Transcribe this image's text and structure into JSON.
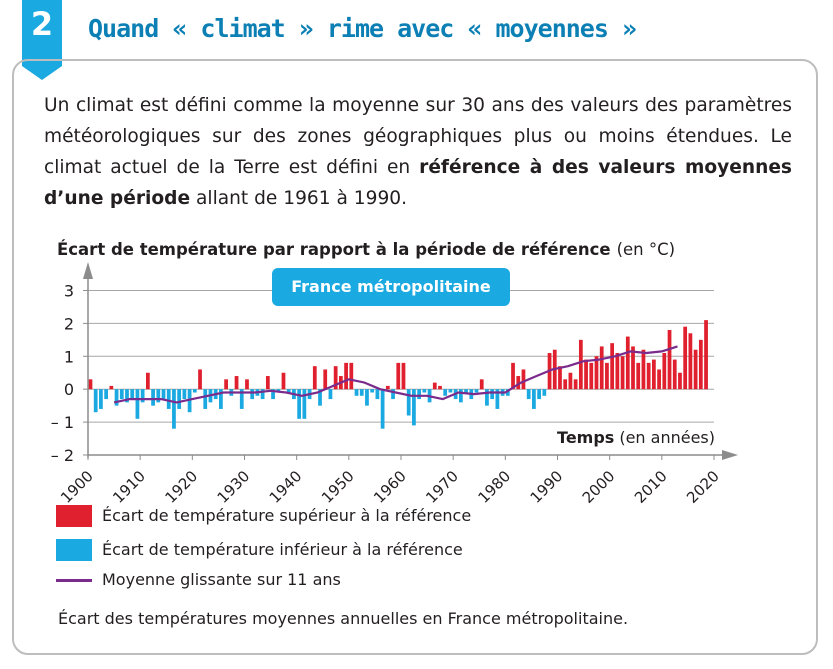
{
  "section": {
    "number": "2",
    "title": "Quand « climat » rime avec « moyennes »"
  },
  "intro": {
    "part1": "Un climat est défini comme la moyenne sur 30 ans des valeurs des paramètres météorologiques sur des zones géographiques plus ou moins étendues. Le climat actuel de la Terre est défini en ",
    "bold": "référence à des valeurs moyennes d’une période",
    "part2": " allant de 1961 à 1990."
  },
  "colors": {
    "accent": "#1aa9e0",
    "title": "#0c80b5",
    "above": "#e0202e",
    "below": "#1aa9e0",
    "moving_average": "#7b2b8c",
    "axis": "#8c8c8c",
    "grid": "#a6a6a6"
  },
  "chart_data": {
    "type": "bar",
    "ylabel": "Écart de température par rapport à la période de référence",
    "ylabel_unit": "(en °C)",
    "xlabel": "Temps",
    "xlabel_unit": "(en années)",
    "annotation": "France métropolitaine",
    "ylim": [
      -2,
      3
    ],
    "xlim": [
      1900,
      2020
    ],
    "yticks": [
      3,
      2,
      1,
      0,
      -1,
      -2
    ],
    "ytick_labels": [
      "3",
      "2",
      "1",
      "0",
      "– 1",
      "– 2"
    ],
    "xticks": [
      1900,
      1910,
      1920,
      1930,
      1940,
      1950,
      1960,
      1970,
      1980,
      1990,
      2000,
      2010,
      2020
    ],
    "grid": "horizontal",
    "years": [
      1900,
      1901,
      1902,
      1903,
      1904,
      1905,
      1906,
      1907,
      1908,
      1909,
      1910,
      1911,
      1912,
      1913,
      1914,
      1915,
      1916,
      1917,
      1918,
      1919,
      1920,
      1921,
      1922,
      1923,
      1924,
      1925,
      1926,
      1927,
      1928,
      1929,
      1930,
      1931,
      1932,
      1933,
      1934,
      1935,
      1936,
      1937,
      1938,
      1939,
      1940,
      1941,
      1942,
      1943,
      1944,
      1945,
      1946,
      1947,
      1948,
      1949,
      1950,
      1951,
      1952,
      1953,
      1954,
      1955,
      1956,
      1957,
      1958,
      1959,
      1960,
      1961,
      1962,
      1963,
      1964,
      1965,
      1966,
      1967,
      1968,
      1969,
      1970,
      1971,
      1972,
      1973,
      1974,
      1975,
      1976,
      1977,
      1978,
      1979,
      1980,
      1981,
      1982,
      1983,
      1984,
      1985,
      1986,
      1987,
      1988,
      1989,
      1990,
      1991,
      1992,
      1993,
      1994,
      1995,
      1996,
      1997,
      1998,
      1999,
      2000,
      2001,
      2002,
      2003,
      2004,
      2005,
      2006,
      2007,
      2008,
      2009,
      2010,
      2011,
      2012,
      2013,
      2014,
      2015,
      2016,
      2017,
      2018
    ],
    "values": [
      0.3,
      -0.7,
      -0.6,
      -0.3,
      0.1,
      -0.5,
      -0.3,
      -0.4,
      -0.3,
      -0.9,
      -0.4,
      0.5,
      -0.5,
      -0.4,
      -0.3,
      -0.6,
      -1.2,
      -0.6,
      -0.3,
      -0.7,
      -0.1,
      0.6,
      -0.6,
      -0.4,
      -0.3,
      -0.6,
      0.3,
      -0.2,
      0.4,
      -0.6,
      0.3,
      -0.3,
      -0.2,
      -0.3,
      0.4,
      -0.3,
      -0.1,
      0.5,
      -0.1,
      -0.3,
      -0.9,
      -0.9,
      -0.3,
      0.7,
      -0.5,
      0.6,
      -0.3,
      0.7,
      0.4,
      0.8,
      0.8,
      -0.2,
      -0.2,
      -0.5,
      -0.1,
      -0.3,
      -1.2,
      0.1,
      -0.3,
      0.8,
      0.8,
      -0.8,
      -1.1,
      -0.3,
      -0.1,
      -0.4,
      0.2,
      0.1,
      -0.2,
      -0.1,
      -0.3,
      -0.4,
      -0.1,
      -0.3,
      -0.1,
      0.3,
      -0.5,
      -0.3,
      -0.6,
      -0.2,
      -0.2,
      0.8,
      0.4,
      0.6,
      -0.3,
      -0.6,
      -0.3,
      -0.2,
      1.1,
      1.2,
      0.7,
      0.3,
      0.5,
      0.3,
      1.5,
      0.9,
      0.8,
      1.0,
      1.3,
      0.8,
      1.4,
      1.1,
      1.0,
      1.6,
      1.3,
      0.8,
      1.2,
      0.8,
      0.9,
      0.6,
      1.1,
      1.8,
      0.9,
      0.5,
      1.9,
      1.7,
      1.2,
      1.5,
      2.1
    ],
    "moving_average": {
      "name": "Moyenne glissante sur 11 ans",
      "x": [
        1905,
        1908,
        1911,
        1914,
        1917,
        1920,
        1923,
        1926,
        1929,
        1932,
        1935,
        1938,
        1941,
        1944,
        1947,
        1950,
        1953,
        1956,
        1959,
        1962,
        1965,
        1968,
        1971,
        1974,
        1977,
        1980,
        1983,
        1986,
        1989,
        1992,
        1995,
        1998,
        2001,
        2004,
        2007,
        2010,
        2013
      ],
      "y": [
        -0.4,
        -0.3,
        -0.3,
        -0.3,
        -0.4,
        -0.3,
        -0.2,
        -0.1,
        -0.1,
        -0.1,
        -0.05,
        -0.1,
        -0.2,
        -0.1,
        0.1,
        0.3,
        0.2,
        0.0,
        -0.1,
        -0.2,
        -0.2,
        -0.3,
        -0.1,
        -0.15,
        -0.1,
        -0.1,
        0.2,
        0.4,
        0.6,
        0.7,
        0.85,
        0.9,
        1.0,
        1.15,
        1.1,
        1.15,
        1.3
      ]
    },
    "legend": [
      {
        "label": "Écart de température supérieur à la référence",
        "swatch": "above"
      },
      {
        "label": "Écart de température inférieur à la référence",
        "swatch": "below"
      },
      {
        "label": "Moyenne glissante sur 11 ans",
        "swatch": "line"
      }
    ],
    "caption": "Écart des températures moyennes annuelles en France métropolitaine."
  }
}
